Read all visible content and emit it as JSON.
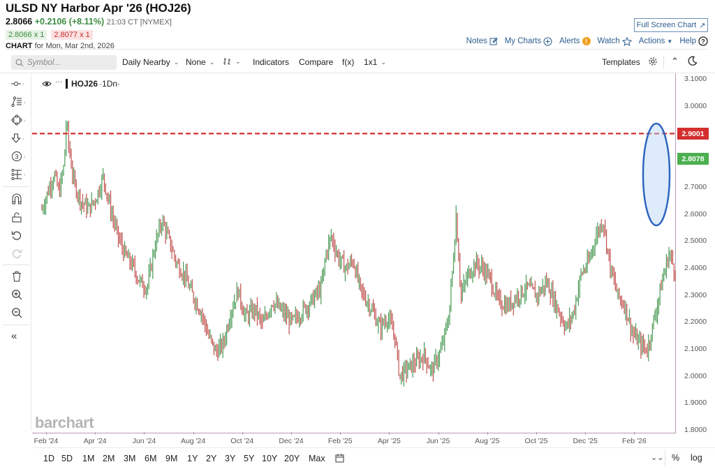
{
  "header": {
    "title": "ULSD NY Harbor Apr '26 (HOJ26)",
    "last": "2.8066",
    "change": "+0.2106 (+8.11%)",
    "time": "21:03 CT [NYMEX]",
    "bid": "2.8066 x 1",
    "ask": "2.8077 x 1",
    "chart_for_label": "CHART",
    "chart_for_date": "for Mon, Mar 2nd, 2026"
  },
  "top_actions": {
    "full_screen": "Full Screen Chart",
    "notes": "Notes",
    "my_charts": "My Charts",
    "alerts": "Alerts",
    "watch": "Watch",
    "actions": "Actions",
    "help": "Help"
  },
  "toolbar": {
    "search_placeholder": "Symbol...",
    "period": "Daily Nearby",
    "overlay": "None",
    "chart_type_icon": "bar-type-icon",
    "indicators": "Indicators",
    "compare": "Compare",
    "fx": "f(x)",
    "layout": "1x1",
    "templates": "Templates"
  },
  "legend": {
    "symbol": "HOJ26",
    "interval": "·1Dn·"
  },
  "left_tools": [
    "crosshair-icon",
    "trendline-icon",
    "shape-icon",
    "arrow-down-icon",
    "counter-3-icon",
    "fibonacci-icon",
    "magnet-icon",
    "unlock-icon",
    "undo-icon",
    "redo-icon",
    "trash-icon",
    "zoom-in-icon",
    "zoom-out-icon",
    "collapse-icon"
  ],
  "price_labels": {
    "red_line": {
      "value": "2.9001",
      "color": "#d32f2f"
    },
    "last": {
      "value": "2.8078",
      "color": "#4caf50"
    }
  },
  "watermark": "barchart",
  "range_buttons": [
    "1D",
    "5D",
    "1M",
    "2M",
    "3M",
    "6M",
    "9M",
    "1Y",
    "2Y",
    "3Y",
    "5Y",
    "10Y",
    "20Y",
    "Max"
  ],
  "bottom_right": {
    "percent": "%",
    "log": "log"
  },
  "colors": {
    "up": "#4a9a55",
    "down": "#c0504d",
    "axis": "#b89bb5",
    "highlight": "#2f66c0"
  },
  "chart_data": {
    "type": "bar",
    "title": "ULSD NY Harbor Apr '26 (HOJ26) Daily Nearby",
    "y_ticks": [
      "3.1000",
      "3.0000",
      "2.9000",
      "2.8000",
      "2.7000",
      "2.6000",
      "2.5000",
      "2.4000",
      "2.3000",
      "2.2000",
      "2.1000",
      "2.0000",
      "1.9000",
      "1.8000"
    ],
    "ylim": [
      1.8,
      3.1
    ],
    "x_ticks": [
      "Feb '24",
      "Apr '24",
      "Jun '24",
      "Aug '24",
      "Oct '24",
      "Dec '24",
      "Feb '25",
      "Apr '25",
      "Jun '25",
      "Aug '25",
      "Oct '25",
      "Dec '25",
      "Feb '26"
    ],
    "horizontal_line": 2.9001,
    "last_price": 2.8078,
    "annotation": "ellipse highlighting final spike near 2.6-2.93",
    "approx_closes_path": [
      [
        0,
        2.62
      ],
      [
        0.3,
        2.7
      ],
      [
        0.5,
        2.75
      ],
      [
        0.7,
        2.68
      ],
      [
        0.9,
        2.78
      ],
      [
        1.0,
        2.95
      ],
      [
        1.1,
        2.85
      ],
      [
        1.3,
        2.72
      ],
      [
        1.6,
        2.65
      ],
      [
        1.9,
        2.62
      ],
      [
        2.2,
        2.66
      ],
      [
        2.5,
        2.74
      ],
      [
        2.8,
        2.62
      ],
      [
        3.1,
        2.52
      ],
      [
        3.4,
        2.45
      ],
      [
        3.7,
        2.41
      ],
      [
        4.0,
        2.35
      ],
      [
        4.3,
        2.33
      ],
      [
        4.6,
        2.48
      ],
      [
        4.9,
        2.58
      ],
      [
        5.2,
        2.5
      ],
      [
        5.5,
        2.42
      ],
      [
        5.8,
        2.38
      ],
      [
        6.1,
        2.31
      ],
      [
        6.5,
        2.24
      ],
      [
        6.8,
        2.15
      ],
      [
        7.1,
        2.09
      ],
      [
        7.4,
        2.12
      ],
      [
        7.7,
        2.24
      ],
      [
        8.0,
        2.32
      ],
      [
        8.3,
        2.22
      ],
      [
        8.7,
        2.25
      ],
      [
        9.0,
        2.19
      ],
      [
        9.4,
        2.28
      ],
      [
        9.8,
        2.24
      ],
      [
        10.2,
        2.2
      ],
      [
        10.6,
        2.24
      ],
      [
        11.0,
        2.28
      ],
      [
        11.4,
        2.33
      ],
      [
        11.6,
        2.46
      ],
      [
        11.8,
        2.52
      ],
      [
        12.1,
        2.44
      ],
      [
        12.4,
        2.4
      ],
      [
        12.7,
        2.43
      ],
      [
        13.0,
        2.32
      ],
      [
        13.4,
        2.26
      ],
      [
        13.8,
        2.18
      ],
      [
        14.1,
        2.22
      ],
      [
        14.4,
        2.15
      ],
      [
        14.6,
        2.0
      ],
      [
        14.8,
        2.02
      ],
      [
        15.2,
        2.05
      ],
      [
        15.6,
        2.08
      ],
      [
        15.9,
        2.02
      ],
      [
        16.3,
        2.1
      ],
      [
        16.6,
        2.22
      ],
      [
        16.8,
        2.45
      ],
      [
        16.9,
        2.6
      ],
      [
        17.1,
        2.3
      ],
      [
        17.4,
        2.38
      ],
      [
        17.7,
        2.42
      ],
      [
        18.0,
        2.4
      ],
      [
        18.3,
        2.36
      ],
      [
        18.6,
        2.28
      ],
      [
        19.0,
        2.26
      ],
      [
        19.4,
        2.3
      ],
      [
        19.8,
        2.33
      ],
      [
        20.2,
        2.3
      ],
      [
        20.6,
        2.35
      ],
      [
        21.0,
        2.26
      ],
      [
        21.4,
        2.18
      ],
      [
        21.7,
        2.24
      ],
      [
        22.0,
        2.38
      ],
      [
        22.3,
        2.42
      ],
      [
        22.6,
        2.52
      ],
      [
        22.9,
        2.58
      ],
      [
        23.2,
        2.4
      ],
      [
        23.5,
        2.3
      ],
      [
        23.8,
        2.26
      ],
      [
        24.1,
        2.16
      ],
      [
        24.4,
        2.12
      ],
      [
        24.7,
        2.1
      ],
      [
        25.0,
        2.22
      ],
      [
        25.3,
        2.35
      ],
      [
        25.6,
        2.46
      ],
      [
        25.8,
        2.4
      ],
      [
        26.0,
        2.38
      ],
      [
        26.3,
        2.3
      ],
      [
        26.5,
        2.46
      ],
      [
        26.7,
        2.5
      ],
      [
        26.9,
        2.52
      ],
      [
        27.0,
        2.8
      ]
    ]
  }
}
